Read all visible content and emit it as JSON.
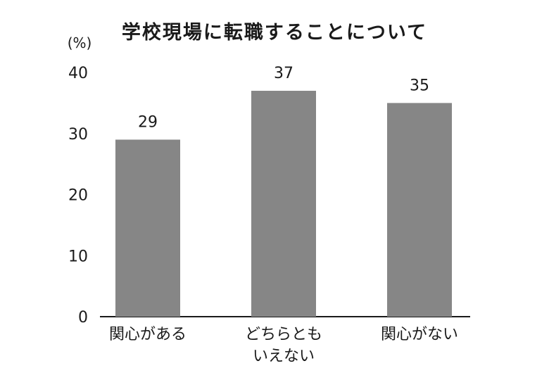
{
  "chart_data": {
    "type": "bar",
    "title": "学校現場に転職することについて",
    "ylabel": "(%)",
    "xlabel": "",
    "categories": [
      [
        "関心がある"
      ],
      [
        "どちらとも",
        "いえない"
      ],
      [
        "関心がない"
      ]
    ],
    "values": [
      29,
      37,
      35
    ],
    "ylim": [
      0,
      40
    ],
    "yticks": [
      0,
      10,
      20,
      30,
      40
    ],
    "grid": false,
    "bar_color": "#868686",
    "axis_color": "#1a1a1a"
  }
}
